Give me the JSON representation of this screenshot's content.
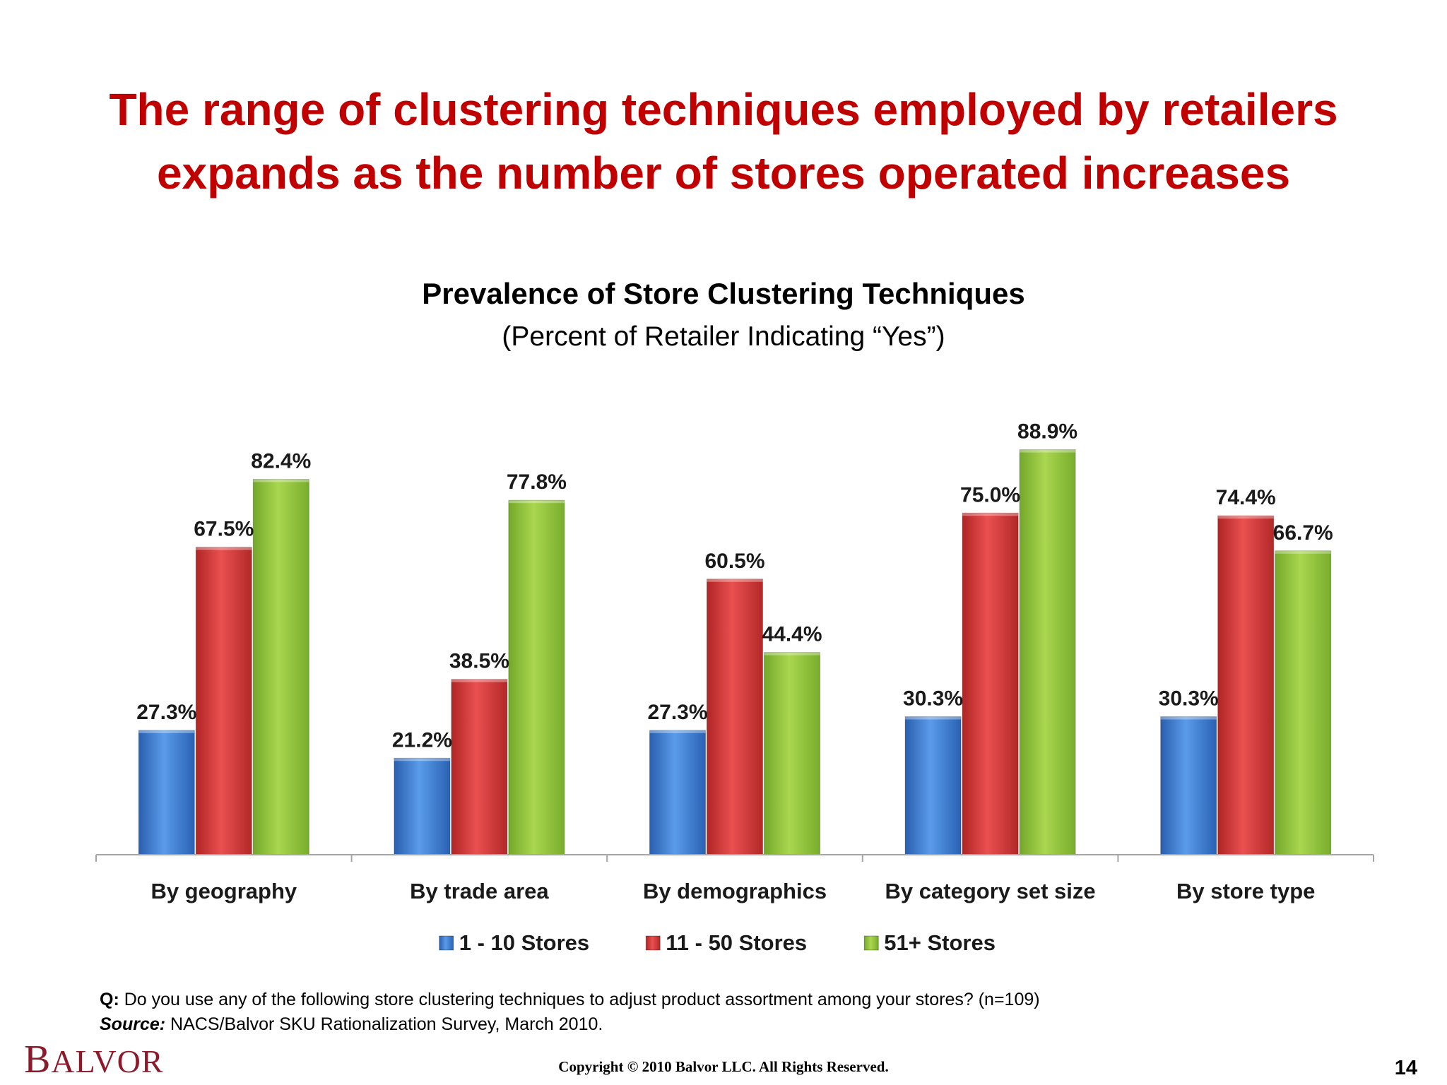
{
  "slide": {
    "headline_line1": "The range of clustering techniques employed by retailers",
    "headline_line2": "expands as the number of stores operated increases",
    "question_label": "Q:",
    "question_text": " Do you use any of the following store clustering techniques to adjust product assortment among your stores?  (n=109)",
    "source_label": "Source:",
    "source_text": " NACS/Balvor SKU Rationalization Survey, March 2010.",
    "logo_first": "B",
    "logo_rest": "ALVOR",
    "copyright": "Copyright © 2010 Balvor LLC. All Rights Reserved.",
    "page_number": "14"
  },
  "chart_data": {
    "type": "bar",
    "title": "Prevalence of Store Clustering Techniques",
    "subtitle": "(Percent of Retailer Indicating “Yes”)",
    "categories": [
      "By geography",
      "By trade area",
      "By demographics",
      "By category set size",
      "By store type"
    ],
    "series": [
      {
        "name": "1 - 10 Stores",
        "values": [
          27.3,
          21.2,
          27.3,
          30.3,
          30.3
        ],
        "labels": [
          "27.3%",
          "21.2%",
          "27.3%",
          "30.3%",
          "30.3%"
        ],
        "color": "#3d7fd6"
      },
      {
        "name": "11 - 50 Stores",
        "values": [
          67.5,
          38.5,
          60.5,
          75.0,
          74.4
        ],
        "labels": [
          "67.5%",
          "38.5%",
          "60.5%",
          "75.0%",
          "74.4%"
        ],
        "color": "#d93a3a"
      },
      {
        "name": "51+ Stores",
        "values": [
          82.4,
          77.8,
          44.4,
          88.9,
          66.7
        ],
        "labels": [
          "82.4%",
          "77.8%",
          "44.4%",
          "88.9%",
          "66.7%"
        ],
        "color": "#92c63a"
      }
    ],
    "ylim": [
      0,
      100
    ],
    "grid": false,
    "legend_position": "bottom"
  }
}
